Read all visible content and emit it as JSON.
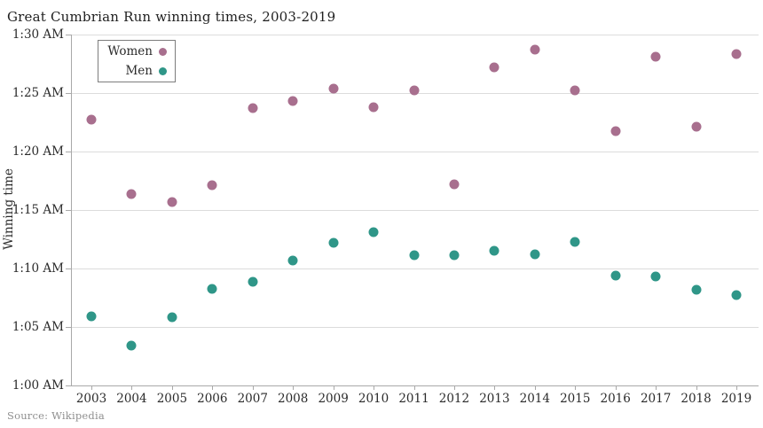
{
  "page": {
    "title": "Great Cumbrian Run winning times, 2003-2019",
    "source": "Source: Wikipedia"
  },
  "chart_data": {
    "type": "scatter",
    "title": "Great Cumbrian Run winning times, 2003-2019",
    "xlabel": "",
    "ylabel": "Winning time",
    "x": [
      2003,
      2004,
      2005,
      2006,
      2007,
      2008,
      2009,
      2010,
      2011,
      2012,
      2013,
      2014,
      2015,
      2016,
      2017,
      2018,
      2019
    ],
    "y_unit": "minutes after 1:00 AM",
    "ylim": [
      0,
      30
    ],
    "y_ticks": [
      {
        "value": 0,
        "label": "1:00 AM"
      },
      {
        "value": 5,
        "label": "1:05 AM"
      },
      {
        "value": 10,
        "label": "1:10 AM"
      },
      {
        "value": 15,
        "label": "1:15 AM"
      },
      {
        "value": 20,
        "label": "1:20 AM"
      },
      {
        "value": 25,
        "label": "1:25 AM"
      },
      {
        "value": 30,
        "label": "1:30 AM"
      }
    ],
    "grid": true,
    "legend_position": "top-left-inside",
    "series": [
      {
        "name": "Women",
        "color": "#a86f8e",
        "values_min": [
          22.7,
          16.4,
          15.7,
          17.1,
          23.75,
          24.3,
          25.4,
          23.8,
          25.2,
          17.2,
          27.2,
          28.7,
          25.25,
          21.75,
          28.1,
          22.1,
          28.35
        ],
        "times": [
          "1:22:42",
          "1:16:24",
          "1:15:42",
          "1:17:06",
          "1:23:45",
          "1:24:18",
          "1:25:24",
          "1:23:48",
          "1:25:12",
          "1:17:12",
          "1:27:12",
          "1:28:42",
          "1:25:15",
          "1:21:45",
          "1:28:06",
          "1:22:06",
          "1:28:21"
        ]
      },
      {
        "name": "Men",
        "color": "#2f9688",
        "values_min": [
          5.9,
          3.4,
          5.8,
          8.25,
          8.9,
          10.65,
          12.2,
          13.1,
          11.1,
          11.15,
          11.5,
          11.2,
          12.3,
          9.4,
          9.35,
          8.2,
          7.75
        ],
        "times": [
          "1:05:54",
          "1:03:24",
          "1:05:48",
          "1:08:15",
          "1:08:54",
          "1:10:39",
          "1:12:12",
          "1:13:06",
          "1:11:06",
          "1:11:09",
          "1:11:30",
          "1:11:12",
          "1:12:18",
          "1:09:24",
          "1:09:21",
          "1:08:12",
          "1:07:45"
        ]
      }
    ]
  }
}
